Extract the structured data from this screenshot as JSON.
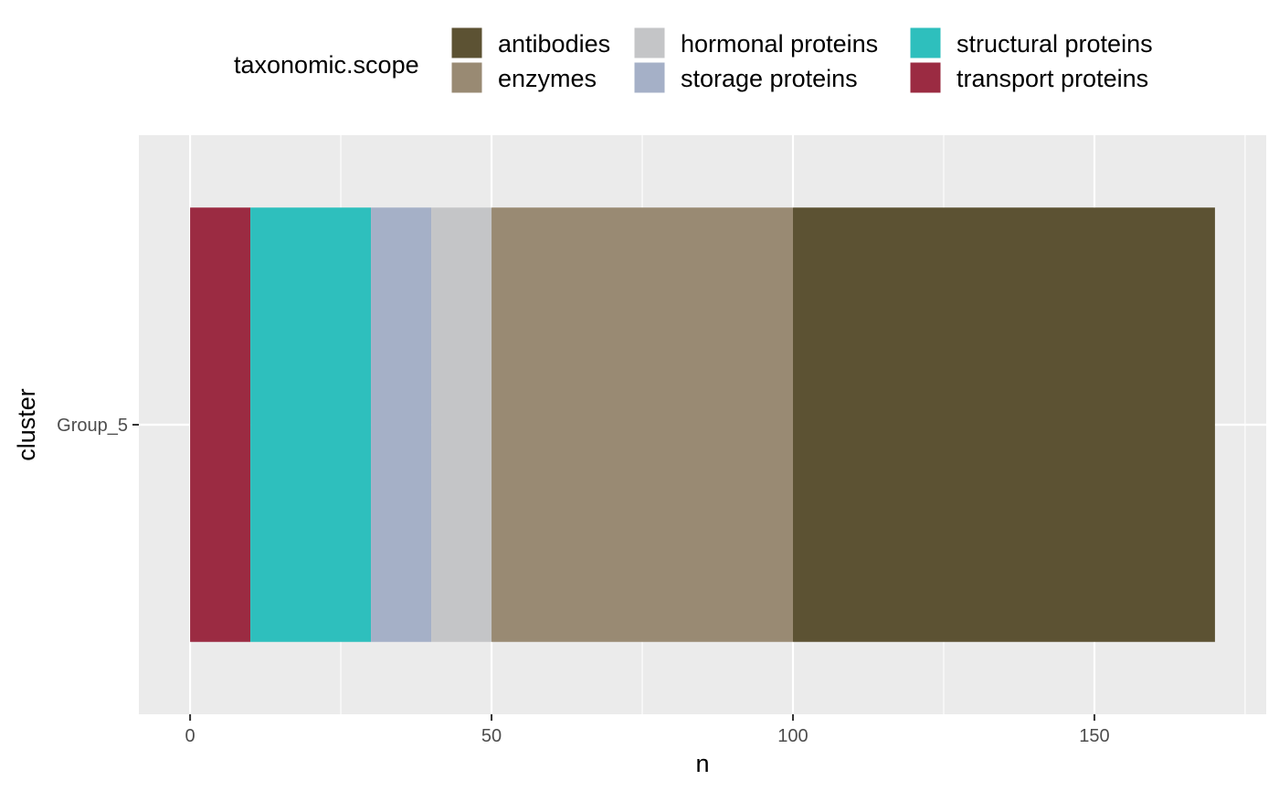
{
  "chart_data": {
    "type": "bar",
    "orientation": "horizontal",
    "stacked": true,
    "categories": [
      "Group_5"
    ],
    "series": [
      {
        "name": "antibodies",
        "values": [
          70
        ],
        "color": "#5c5233"
      },
      {
        "name": "enzymes",
        "values": [
          50
        ],
        "color": "#998a73"
      },
      {
        "name": "hormonal proteins",
        "values": [
          10
        ],
        "color": "#c4c5c7"
      },
      {
        "name": "storage proteins",
        "values": [
          10
        ],
        "color": "#a5b0c7"
      },
      {
        "name": "structural proteins",
        "values": [
          20
        ],
        "color": "#2ebfbd"
      },
      {
        "name": "transport proteins",
        "values": [
          10
        ],
        "color": "#9b2b42"
      }
    ],
    "stack_order_from_zero": [
      "transport proteins",
      "structural proteins",
      "storage proteins",
      "hormonal proteins",
      "enzymes",
      "antibodies"
    ],
    "xlabel": "n",
    "ylabel": "cluster",
    "xlim": [
      -8.5,
      178.5
    ],
    "x_ticks": [
      0,
      50,
      100,
      150
    ],
    "grid": true,
    "legend": {
      "title": "taxonomic.scope",
      "position": "top",
      "ncol": 3
    }
  }
}
